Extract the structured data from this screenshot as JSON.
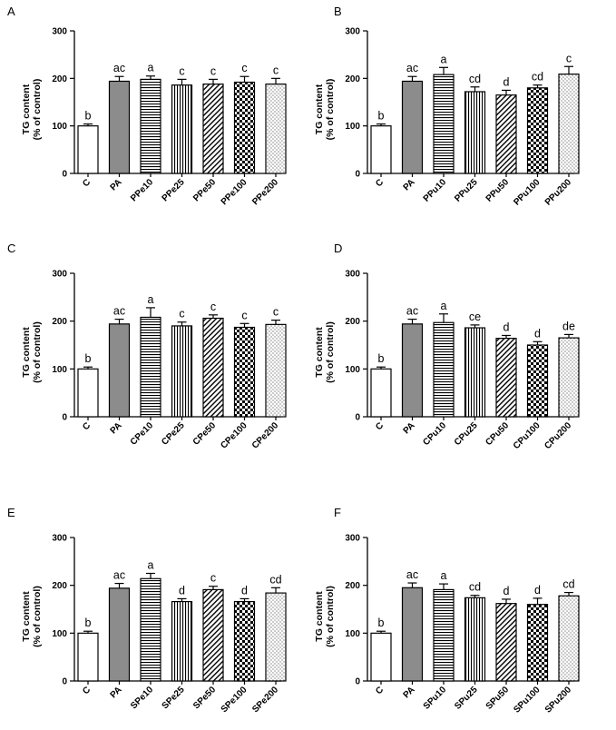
{
  "chart_data": [
    {
      "type": "bar",
      "panel": "A",
      "ylabel_line1": "TG content",
      "ylabel_line2": "(% of control)",
      "ylim": [
        0,
        300
      ],
      "yticks": [
        "0",
        "100",
        "200",
        "300"
      ],
      "categories": [
        "C",
        "PA",
        "PPe10",
        "PPe25",
        "PPe50",
        "PPe100",
        "PPe200"
      ],
      "values": [
        100,
        194,
        198,
        186,
        188,
        192,
        188
      ],
      "errors": [
        4,
        10,
        7,
        12,
        10,
        12,
        12
      ],
      "labels": [
        "b",
        "ac",
        "a",
        "c",
        "c",
        "c",
        "c"
      ]
    },
    {
      "type": "bar",
      "panel": "B",
      "ylabel_line1": "TG content",
      "ylabel_line2": "(% of control)",
      "ylim": [
        0,
        300
      ],
      "yticks": [
        "0",
        "100",
        "200",
        "300"
      ],
      "categories": [
        "C",
        "PA",
        "PPu10",
        "PPu25",
        "PPu50",
        "PPu100",
        "PPu200"
      ],
      "values": [
        100,
        194,
        208,
        172,
        165,
        180,
        209
      ],
      "errors": [
        4,
        10,
        15,
        10,
        10,
        6,
        16
      ],
      "labels": [
        "b",
        "ac",
        "a",
        "cd",
        "d",
        "cd",
        "c"
      ]
    },
    {
      "type": "bar",
      "panel": "C",
      "ylabel_line1": "TG content",
      "ylabel_line2": "(% of control)",
      "ylim": [
        0,
        300
      ],
      "yticks": [
        "0",
        "100",
        "200",
        "300"
      ],
      "categories": [
        "C",
        "PA",
        "CPe10",
        "CPe25",
        "CPe50",
        "CPe100",
        "CPe200"
      ],
      "values": [
        100,
        194,
        208,
        190,
        206,
        187,
        193
      ],
      "errors": [
        4,
        10,
        20,
        8,
        7,
        8,
        9
      ],
      "labels": [
        "b",
        "ac",
        "a",
        "c",
        "c",
        "c",
        "c"
      ]
    },
    {
      "type": "bar",
      "panel": "D",
      "ylabel_line1": "TG content",
      "ylabel_line2": "(% of control)",
      "ylim": [
        0,
        300
      ],
      "yticks": [
        "0",
        "100",
        "200",
        "300"
      ],
      "categories": [
        "C",
        "PA",
        "CPu10",
        "CPu25",
        "CPu50",
        "CPu100",
        "CPu200"
      ],
      "values": [
        100,
        194,
        197,
        186,
        164,
        150,
        165
      ],
      "errors": [
        4,
        10,
        18,
        6,
        6,
        7,
        7
      ],
      "labels": [
        "b",
        "ac",
        "a",
        "ce",
        "d",
        "d",
        "de"
      ]
    },
    {
      "type": "bar",
      "panel": "E",
      "ylabel_line1": "TG content",
      "ylabel_line2": "(% of control)",
      "ylim": [
        0,
        300
      ],
      "yticks": [
        "0",
        "100",
        "200",
        "300"
      ],
      "categories": [
        "C",
        "PA",
        "SPe10",
        "SPe25",
        "SPe50",
        "SPe100",
        "SPe200"
      ],
      "values": [
        100,
        194,
        214,
        166,
        191,
        166,
        184
      ],
      "errors": [
        4,
        10,
        11,
        6,
        7,
        6,
        11
      ],
      "labels": [
        "b",
        "ac",
        "a",
        "d",
        "c",
        "d",
        "cd"
      ]
    },
    {
      "type": "bar",
      "panel": "F",
      "ylabel_line1": "TG content",
      "ylabel_line2": "(% of control)",
      "ylim": [
        0,
        300
      ],
      "yticks": [
        "0",
        "100",
        "200",
        "300"
      ],
      "categories": [
        "C",
        "PA",
        "SPu10",
        "SPu25",
        "SPu50",
        "SPu100",
        "SPu200"
      ],
      "values": [
        100,
        195,
        191,
        174,
        162,
        160,
        178
      ],
      "errors": [
        4,
        10,
        12,
        5,
        9,
        13,
        7
      ],
      "labels": [
        "b",
        "ac",
        "a",
        "cd",
        "d",
        "d",
        "cd"
      ]
    }
  ],
  "colors": {
    "bar_outline": "#000000",
    "control_fill": "#ffffff",
    "pa_fill": "#8c8c8c",
    "pattern_ink": "#000000"
  },
  "bar_patterns": [
    "white",
    "gray",
    "horizontal-lines",
    "vertical-lines",
    "diagonal-hatch",
    "checkerboard",
    "dots"
  ]
}
